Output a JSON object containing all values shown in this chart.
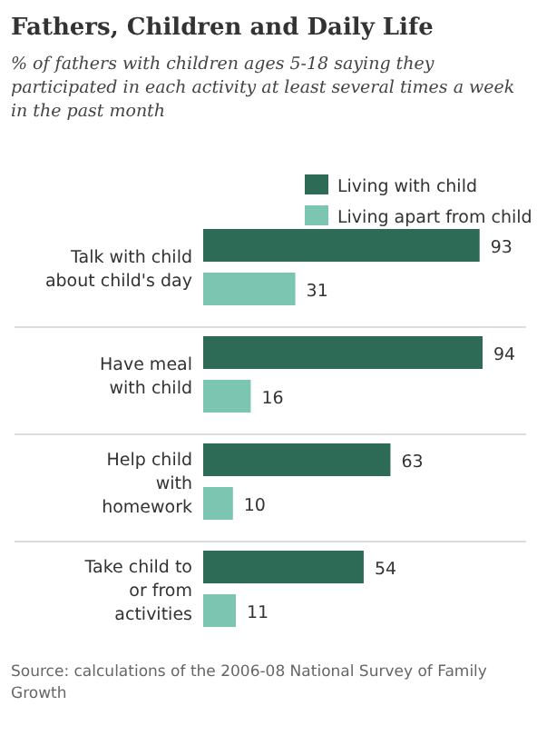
{
  "chart_data": {
    "type": "bar",
    "orientation": "horizontal",
    "title": "Fathers, Children and Daily Life",
    "subtitle": "% of fathers with children ages 5-18 saying they participated in each activity at least several times a week in the past month",
    "categories": [
      "Talk with child\nabout child's day",
      "Have meal\nwith child",
      "Help child\nwith\nhomework",
      "Take child to\nor from\nactivities"
    ],
    "series": [
      {
        "name": "Living with child",
        "color": "#2e6b57",
        "values": [
          93,
          94,
          63,
          54
        ]
      },
      {
        "name": "Living apart from child",
        "color": "#7cc5b0",
        "values": [
          31,
          16,
          10,
          11
        ]
      }
    ],
    "tick_labels": false,
    "data_labels": true,
    "legend": "top right",
    "annotations": [
      "Source: calculations of the 2006-08 National Survey of Family Growth"
    ]
  }
}
